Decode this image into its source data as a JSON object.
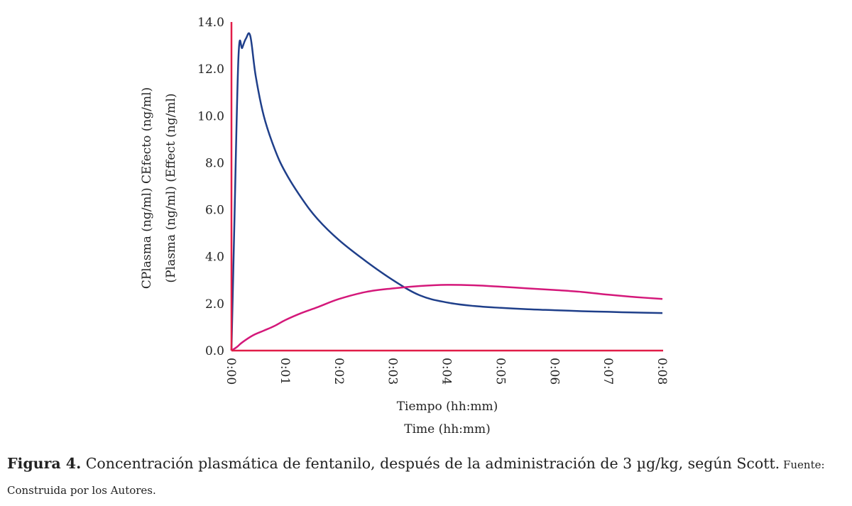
{
  "chart_data": {
    "type": "line",
    "xlabel_es": "Tiempo (hh:mm)",
    "xlabel_en": "Time (hh:mm)",
    "ylabel_es": "CPlasma (ng/ml) CEfecto (ng/ml)",
    "ylabel_en": "(Plasma (ng/ml) (Effect (ng/ml)",
    "xlim_minutes": [
      0,
      8
    ],
    "ylim": [
      0,
      14
    ],
    "x_ticks": [
      "0:00",
      "0:01",
      "0:02",
      "0:03",
      "0:04",
      "0:05",
      "0:06",
      "0:07",
      "0:08"
    ],
    "y_ticks": [
      "0.0",
      "2.0",
      "4.0",
      "6.0",
      "8.0",
      "10.0",
      "12.0",
      "14.0"
    ],
    "grid": false,
    "series": [
      {
        "color": "#1f3f8a",
        "x_minutes": [
          0,
          0.05,
          0.13,
          0.2,
          0.27,
          0.35,
          0.45,
          0.6,
          0.8,
          1.0,
          1.3,
          1.6,
          2.0,
          2.5,
          3.0,
          3.5,
          4.0,
          4.5,
          5.0,
          5.5,
          6.0,
          6.5,
          7.0,
          7.5,
          8.0
        ],
        "y": [
          0,
          5.0,
          12.5,
          12.9,
          13.3,
          13.4,
          11.7,
          10.0,
          8.6,
          7.6,
          6.5,
          5.6,
          4.7,
          3.8,
          3.0,
          2.35,
          2.05,
          1.9,
          1.82,
          1.76,
          1.72,
          1.68,
          1.65,
          1.62,
          1.6
        ]
      },
      {
        "color": "#d4187a",
        "x_minutes": [
          0,
          0.1,
          0.2,
          0.4,
          0.6,
          0.8,
          1.0,
          1.3,
          1.6,
          2.0,
          2.5,
          3.0,
          3.5,
          4.0,
          4.5,
          5.0,
          5.5,
          6.0,
          6.5,
          7.0,
          7.5,
          8.0
        ],
        "y": [
          0,
          0.15,
          0.35,
          0.65,
          0.85,
          1.05,
          1.3,
          1.6,
          1.85,
          2.2,
          2.5,
          2.65,
          2.75,
          2.8,
          2.78,
          2.72,
          2.65,
          2.58,
          2.5,
          2.38,
          2.28,
          2.2
        ]
      }
    ],
    "colors": {
      "axes": "#e11d48"
    }
  },
  "caption": {
    "label": "Figura 4.",
    "text": " Concentración plasmática de fentanilo, después de la administración de 3 µg/kg, según Scott.",
    "source": " Fuente: Construida por los Autores."
  }
}
